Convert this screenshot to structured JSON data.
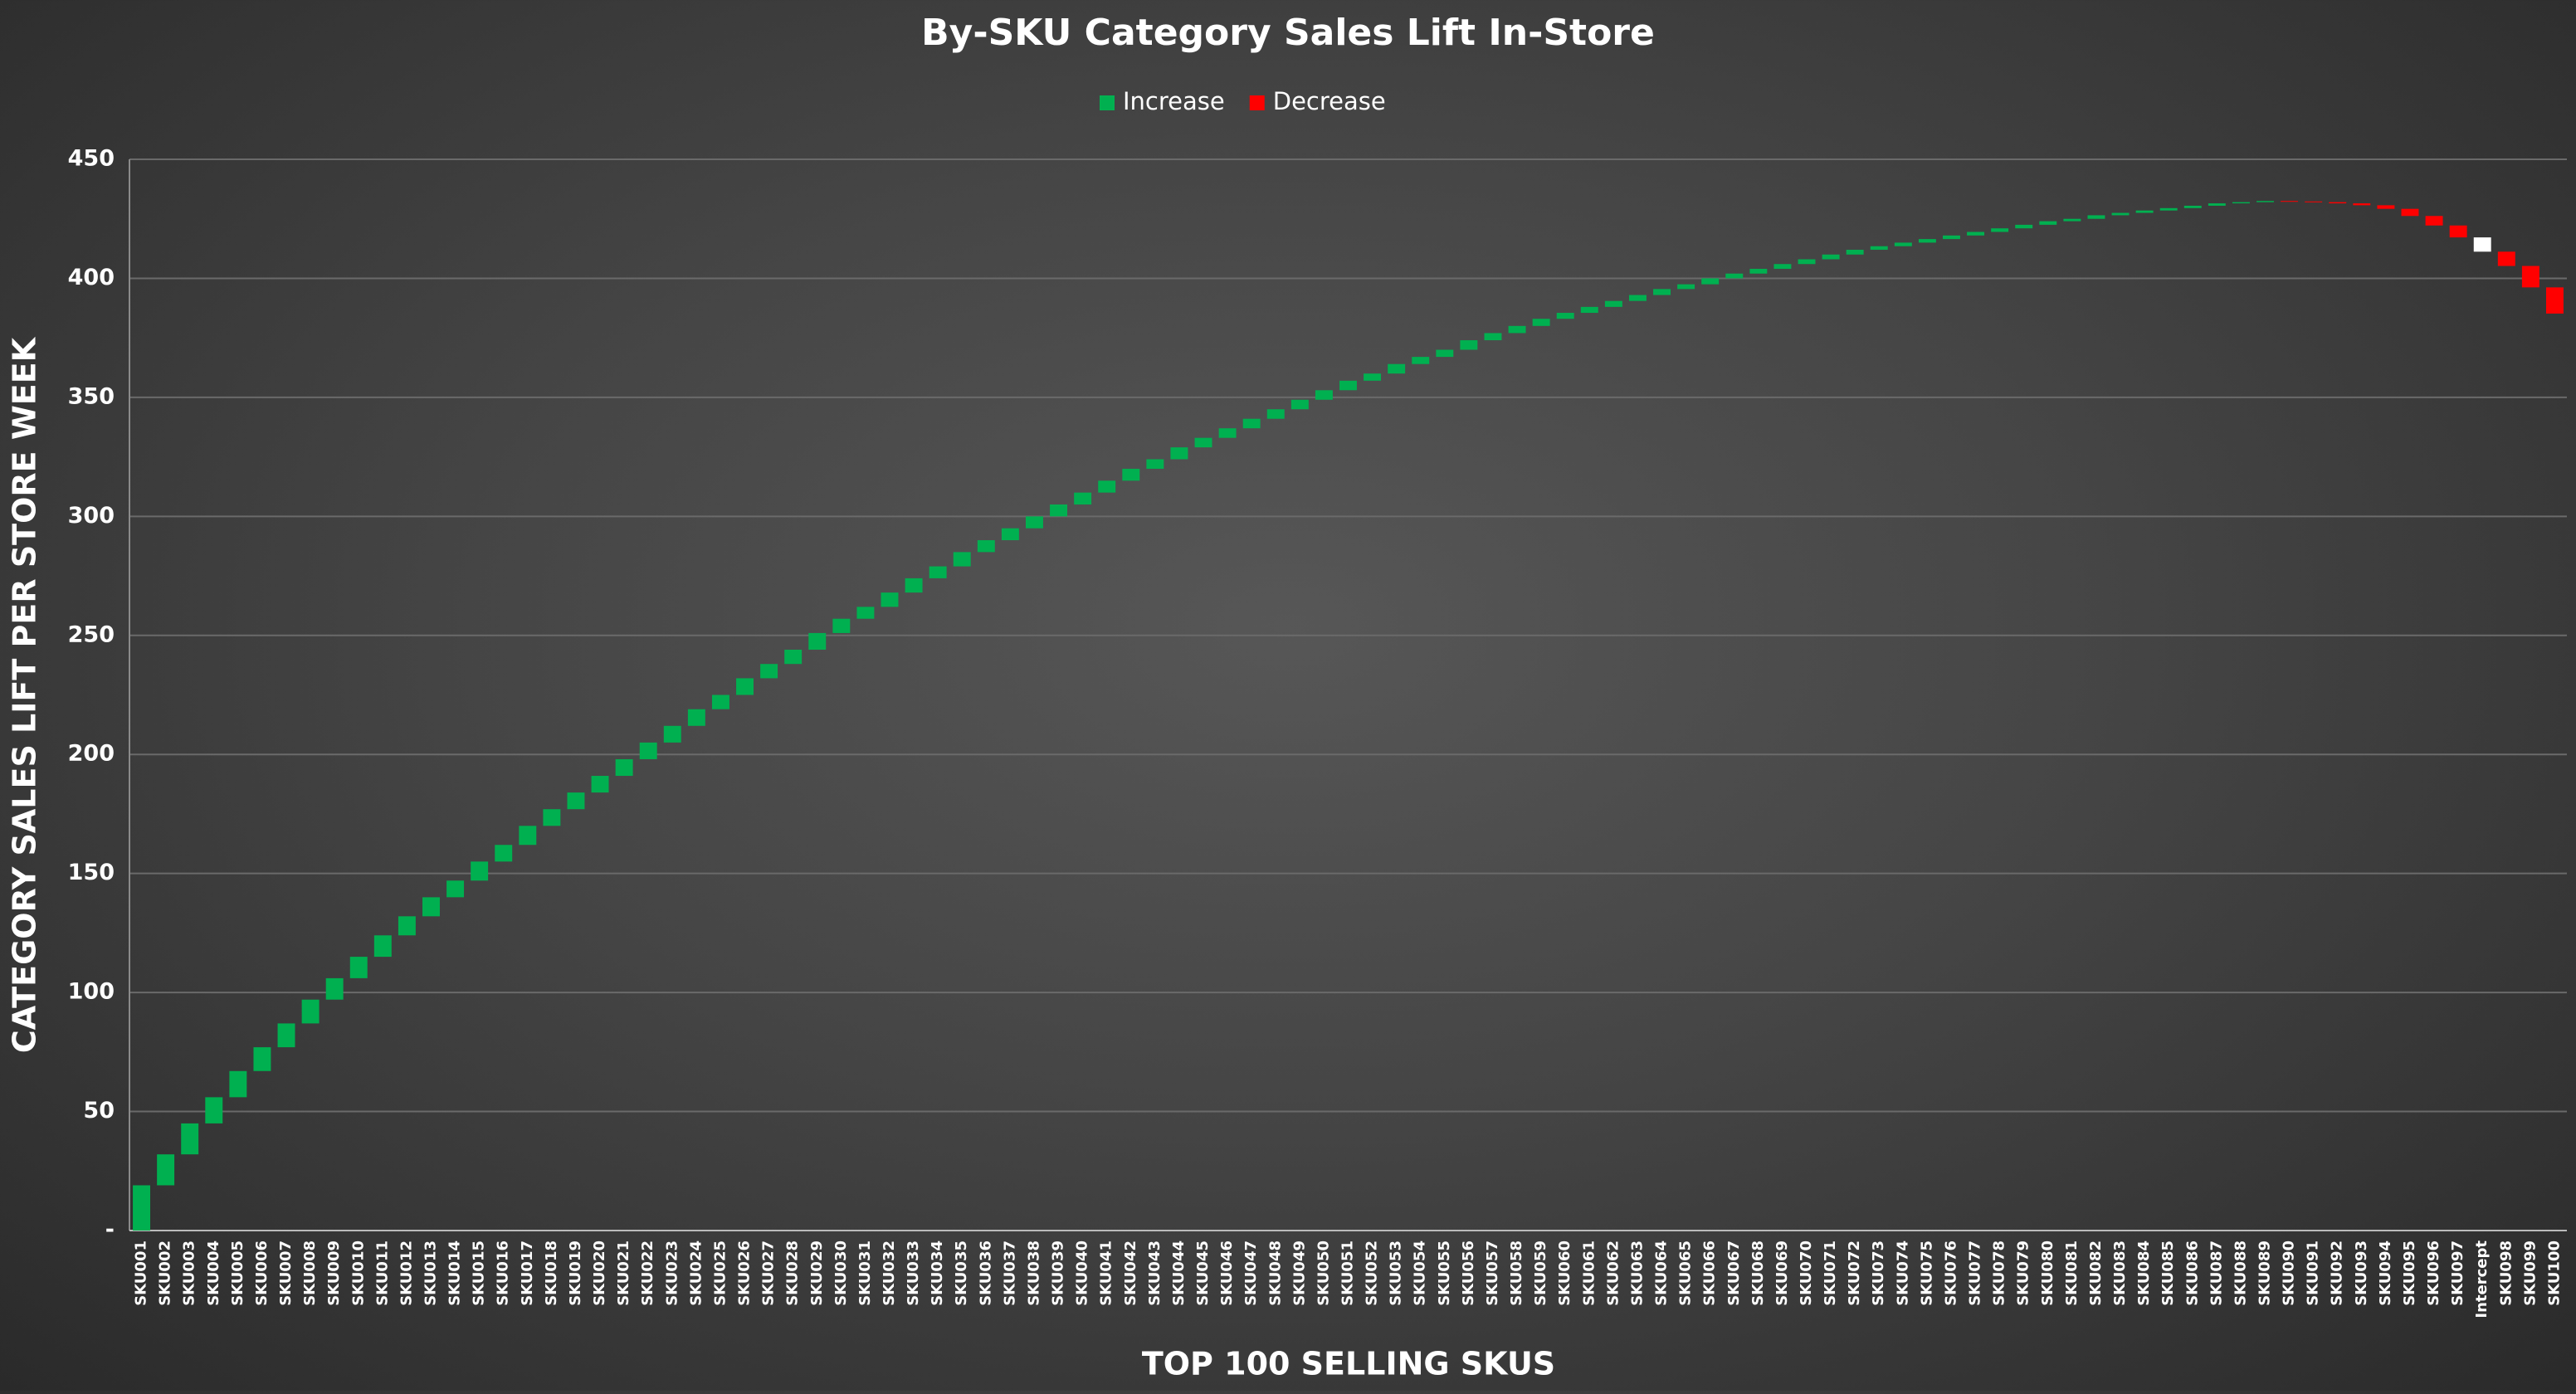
{
  "chart_data": {
    "type": "waterfall",
    "title": "By-SKU Category Sales Lift In-Store",
    "x_label": "TOP 100 SELLING SKUS",
    "y_label": "CATEGORY SALES LIFT PER STORE WEEK",
    "legend": [
      {
        "name": "Increase",
        "color": "#00b050"
      },
      {
        "name": "Decrease",
        "color": "#ff0000"
      }
    ],
    "highlight": {
      "index": 97,
      "color": "#ffffff"
    },
    "categories": [
      "SKU001",
      "SKU002",
      "SKU003",
      "SKU004",
      "SKU005",
      "SKU006",
      "SKU007",
      "SKU008",
      "SKU009",
      "SKU010",
      "SKU011",
      "SKU012",
      "SKU013",
      "SKU014",
      "SKU015",
      "SKU016",
      "SKU017",
      "SKU018",
      "SKU019",
      "SKU020",
      "SKU021",
      "SKU022",
      "SKU023",
      "SKU024",
      "SKU025",
      "SKU026",
      "SKU027",
      "SKU028",
      "SKU029",
      "SKU030",
      "SKU031",
      "SKU032",
      "SKU033",
      "SKU034",
      "SKU035",
      "SKU036",
      "SKU037",
      "SKU038",
      "SKU039",
      "SKU040",
      "SKU041",
      "SKU042",
      "SKU043",
      "SKU044",
      "SKU045",
      "SKU046",
      "SKU047",
      "SKU048",
      "SKU049",
      "SKU050",
      "SKU051",
      "SKU052",
      "SKU053",
      "SKU054",
      "SKU055",
      "SKU056",
      "SKU057",
      "SKU058",
      "SKU059",
      "SKU060",
      "SKU061",
      "SKU062",
      "SKU063",
      "SKU064",
      "SKU065",
      "SKU066",
      "SKU067",
      "SKU068",
      "SKU069",
      "SKU070",
      "SKU071",
      "SKU072",
      "SKU073",
      "SKU074",
      "SKU075",
      "SKU076",
      "SKU077",
      "SKU078",
      "SKU079",
      "SKU080",
      "SKU081",
      "SKU082",
      "SKU083",
      "SKU084",
      "SKU085",
      "SKU086",
      "SKU087",
      "SKU088",
      "SKU089",
      "SKU090",
      "SKU091",
      "SKU092",
      "SKU093",
      "SKU094",
      "SKU095",
      "SKU096",
      "SKU097",
      "Intercept",
      "SKU098",
      "SKU099",
      "SKU100"
    ],
    "values": [
      19,
      13,
      13,
      11,
      11,
      10,
      10,
      10,
      9,
      9,
      9,
      8,
      8,
      7,
      8,
      7,
      8,
      7,
      7,
      7,
      7,
      7,
      7,
      7,
      6,
      7,
      6,
      6,
      7,
      6,
      5,
      6,
      6,
      5,
      6,
      5,
      5,
      5,
      5,
      5,
      5,
      5,
      4,
      5,
      4,
      4,
      4,
      4,
      4,
      4,
      4,
      3,
      4,
      3,
      3,
      4,
      3,
      3,
      3,
      2.5,
      2.5,
      2.5,
      2.5,
      2.5,
      2,
      2.5,
      2,
      2,
      2,
      2,
      2,
      2,
      1.5,
      1.5,
      1.5,
      1.5,
      1.5,
      1.5,
      1.5,
      1.5,
      1,
      1.5,
      1,
      1,
      1,
      1,
      1,
      0.5,
      0.5,
      -0.2,
      -0.3,
      -0.5,
      -0.8,
      -1.5,
      -3,
      -4,
      -5,
      -6,
      -6,
      -9,
      -11
    ],
    "ylim": [
      0,
      450
    ],
    "yticks": [
      {
        "value": 0,
        "label": "-"
      },
      50,
      100,
      150,
      200,
      250,
      300,
      350,
      400,
      450
    ],
    "grid": true
  }
}
